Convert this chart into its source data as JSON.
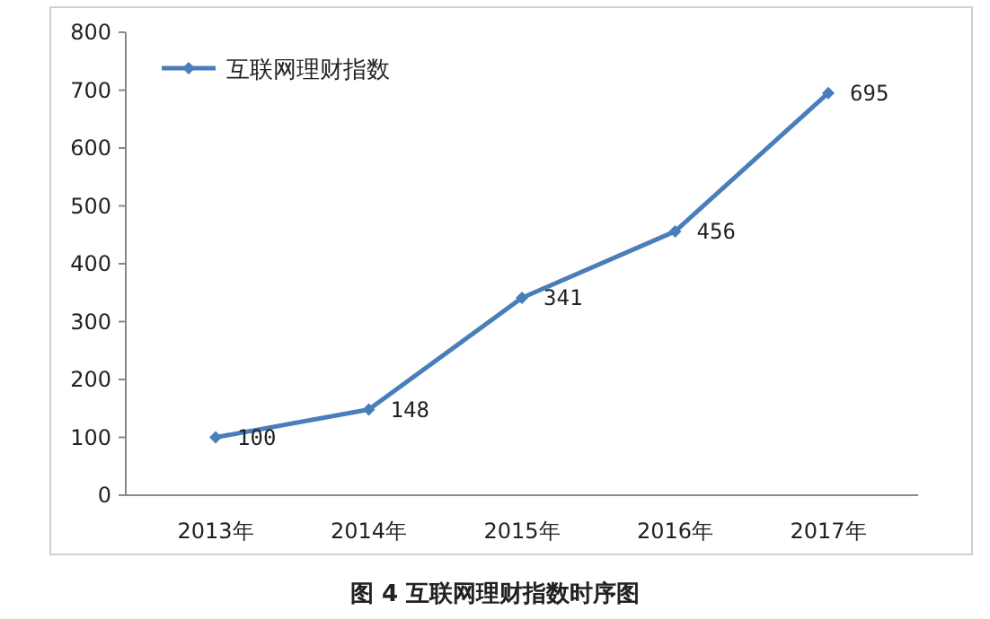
{
  "chart_data": {
    "type": "line",
    "title": "图 4 互联网理财指数时序图",
    "categories": [
      "2013年",
      "2014年",
      "2015年",
      "2016年",
      "2017年"
    ],
    "series": [
      {
        "name": "互联网理财指数",
        "color": "#4a7ebb",
        "values": [
          100,
          148,
          341,
          456,
          695
        ]
      }
    ],
    "ylim": [
      0,
      800
    ],
    "yticks": [
      0,
      100,
      200,
      300,
      400,
      500,
      600,
      700,
      800
    ],
    "grid": false,
    "legend": "top left",
    "marker": "diamond",
    "line_style": "solid",
    "data_labels": true
  }
}
